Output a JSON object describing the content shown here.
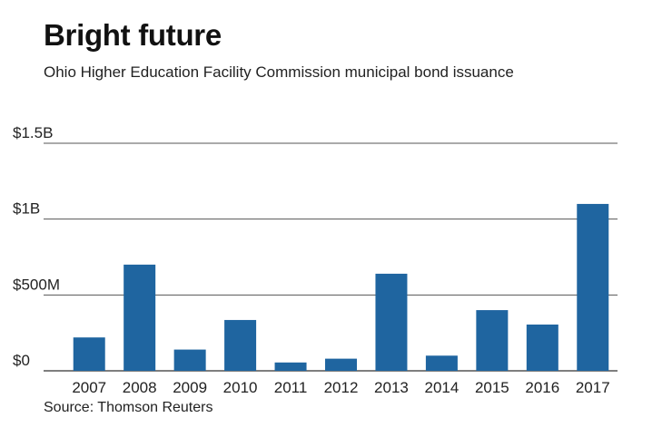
{
  "chart_data": {
    "type": "bar",
    "title": "Bright future",
    "subtitle": "Ohio Higher Education Facility Commission municipal bond issuance",
    "source": "Source: Thomson Reuters",
    "categories": [
      "2007",
      "2008",
      "2009",
      "2010",
      "2011",
      "2012",
      "2013",
      "2014",
      "2015",
      "2016",
      "2017"
    ],
    "values": [
      220,
      700,
      140,
      335,
      55,
      80,
      640,
      100,
      400,
      305,
      1100
    ],
    "unit": "millions of dollars",
    "ylim": [
      0,
      1500
    ],
    "yticks": [
      {
        "value": 0,
        "label": "$0"
      },
      {
        "value": 500,
        "label": "$500M"
      },
      {
        "value": 1000,
        "label": "$1B"
      },
      {
        "value": 1500,
        "label": "$1.5B"
      }
    ],
    "xlabel": "",
    "ylabel": "",
    "grid": true,
    "bar_color": "#1f65a0"
  }
}
